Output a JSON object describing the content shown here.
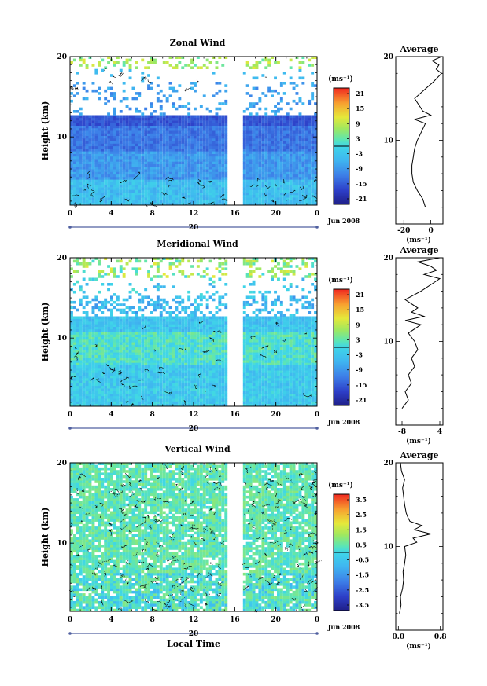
{
  "panels": [
    {
      "id": "zonal",
      "title": "Zonal Wind",
      "avg_title": "Average",
      "ylabel": "Height (km)",
      "units": "(ms⁻¹)",
      "colorbar_ticks": [
        "21",
        "15",
        "9",
        "3",
        "-3",
        "-9",
        "-15",
        "-21"
      ],
      "avg_xticks": [
        "-20",
        "0"
      ],
      "avg_xlabel": "(ms⁻¹)",
      "date_label": "Jun 2008",
      "day_label": "20"
    },
    {
      "id": "meridional",
      "title": "Meridional Wind",
      "avg_title": "Average",
      "ylabel": "Height (km)",
      "units": "(ms⁻¹)",
      "colorbar_ticks": [
        "21",
        "15",
        "9",
        "3",
        "-3",
        "-9",
        "-15",
        "-21"
      ],
      "avg_xticks": [
        "-8",
        "4"
      ],
      "avg_xlabel": "(ms⁻¹)",
      "date_label": "Jun 2008",
      "day_label": "20"
    },
    {
      "id": "vertical",
      "title": "Vertical Wind",
      "avg_title": "Average",
      "ylabel": "Height (km)",
      "units": "(ms⁻¹)",
      "colorbar_ticks": [
        "3.5",
        "2.5",
        "1.5",
        "0.5",
        "-0.5",
        "-1.5",
        "-2.5",
        "-3.5"
      ],
      "avg_xticks": [
        "0.0",
        "0.8"
      ],
      "avg_xlabel": "(ms⁻¹)",
      "date_label": "Jun 2008",
      "day_label": "20",
      "xlabel": "Local Time"
    }
  ],
  "chart_data": [
    {
      "type": "heatmap",
      "title": "Zonal Wind",
      "xlabel": "",
      "ylabel": "Height (km)",
      "xticks": [
        "0",
        "4",
        "8",
        "12",
        "16",
        "20",
        "0"
      ],
      "yticks": [
        "10",
        "20"
      ],
      "xlim": [
        0,
        24
      ],
      "ylim": [
        1.5,
        20
      ],
      "colorbar": {
        "label": "(ms⁻¹)",
        "range": [
          -24,
          24
        ],
        "ticks": [
          21,
          15,
          9,
          3,
          -3,
          -9,
          -15,
          -21
        ]
      },
      "data_gap_hours": [
        15.2,
        16.6
      ],
      "profile": {
        "title": "Average",
        "xlim": [
          -26,
          9
        ],
        "xticks": [
          -20,
          0
        ],
        "height_km": [
          2,
          3,
          4,
          5,
          6,
          7,
          8,
          9,
          10,
          11,
          12,
          12.5,
          13,
          13.5,
          14,
          15,
          16,
          17,
          17.5,
          18,
          18.5,
          19,
          19.5,
          20
        ],
        "values": [
          -4,
          -6,
          -10,
          -13,
          -14,
          -14,
          -13,
          -12,
          -10,
          -7,
          -4,
          -12,
          0,
          -6,
          -8,
          -12,
          -5,
          2,
          5,
          8,
          4,
          6,
          1,
          8
        ]
      }
    },
    {
      "type": "heatmap",
      "title": "Meridional Wind",
      "xlabel": "",
      "ylabel": "Height (km)",
      "xticks": [
        "0",
        "4",
        "8",
        "12",
        "16",
        "20",
        "0"
      ],
      "yticks": [
        "10",
        "20"
      ],
      "xlim": [
        0,
        24
      ],
      "ylim": [
        1.5,
        20
      ],
      "colorbar": {
        "label": "(ms⁻¹)",
        "range": [
          -24,
          24
        ],
        "ticks": [
          21,
          15,
          9,
          3,
          -3,
          -9,
          -15,
          -21
        ]
      },
      "data_gap_hours": [
        15.2,
        16.6
      ],
      "profile": {
        "title": "Average",
        "xlim": [
          -10,
          5
        ],
        "xticks": [
          -8,
          4
        ],
        "height_km": [
          2,
          3,
          4,
          5,
          6,
          7,
          8,
          9,
          10,
          11,
          12,
          12.5,
          13,
          13.5,
          14,
          15,
          16,
          17,
          17.5,
          18,
          18.5,
          19,
          19.5,
          20
        ],
        "values": [
          -8,
          -6,
          -7,
          -5,
          -6,
          -4,
          -5,
          -3,
          -4,
          -6,
          -2,
          -7,
          -1,
          -5,
          -3,
          -7,
          -2,
          2,
          4,
          -1,
          3,
          1,
          -3,
          4
        ]
      }
    },
    {
      "type": "heatmap",
      "title": "Vertical Wind",
      "xlabel": "Local Time",
      "ylabel": "Height (km)",
      "xticks": [
        "0",
        "4",
        "8",
        "12",
        "16",
        "20",
        "0"
      ],
      "yticks": [
        "10",
        "20"
      ],
      "xlim": [
        0,
        24
      ],
      "ylim": [
        1.5,
        20
      ],
      "colorbar": {
        "label": "(ms⁻¹)",
        "range": [
          -4,
          4
        ],
        "ticks": [
          3.5,
          2.5,
          1.5,
          0.5,
          -0.5,
          -1.5,
          -2.5,
          -3.5
        ]
      },
      "data_gap_hours": [
        15.2,
        16.6
      ],
      "profile": {
        "title": "Average",
        "xlim": [
          -0.05,
          0.85
        ],
        "xticks": [
          0.0,
          0.8
        ],
        "height_km": [
          2,
          3,
          4,
          5,
          6,
          7,
          8,
          9,
          10,
          10.5,
          11,
          11.5,
          12,
          12.5,
          13,
          13.5,
          14,
          15,
          16,
          17,
          18,
          19,
          20
        ],
        "values": [
          0.02,
          0.05,
          0.04,
          0.08,
          0.1,
          0.09,
          0.12,
          0.14,
          0.12,
          0.35,
          0.28,
          0.62,
          0.3,
          0.45,
          0.22,
          0.18,
          0.15,
          0.12,
          0.1,
          0.08,
          0.12,
          0.06,
          0.04
        ]
      }
    }
  ]
}
